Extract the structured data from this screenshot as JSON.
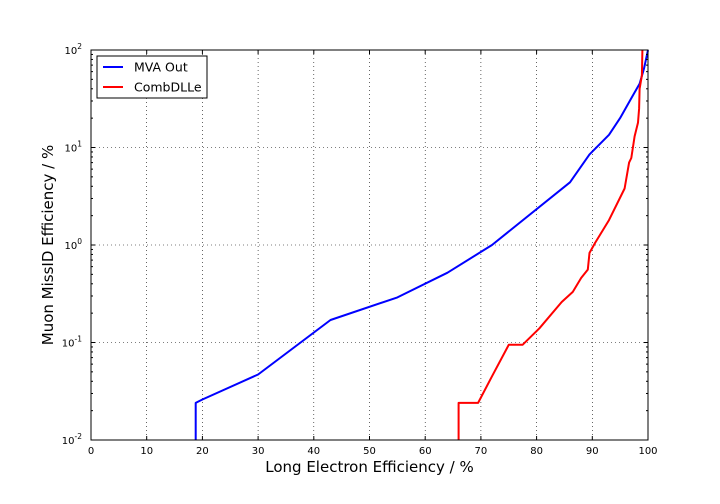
{
  "chart_data": {
    "type": "line",
    "xlabel": "Long Electron Efficiency / %",
    "ylabel": "Muon MissID Efficiency / %",
    "xlim": [
      0,
      100
    ],
    "ylim": [
      0.01,
      100
    ],
    "yscale": "log",
    "grid": true,
    "legend_position": "top-left",
    "x_ticks": [
      "0",
      "10",
      "20",
      "30",
      "40",
      "50",
      "60",
      "70",
      "80",
      "90",
      "100"
    ],
    "y_ticks": [
      {
        "base": "10",
        "exp": "-2"
      },
      {
        "base": "10",
        "exp": "-1"
      },
      {
        "base": "10",
        "exp": "0"
      },
      {
        "base": "10",
        "exp": "1"
      },
      {
        "base": "10",
        "exp": "2"
      }
    ],
    "series": [
      {
        "name": "MVA Out",
        "color": "#0000ff",
        "points": [
          [
            18.8,
            0.01
          ],
          [
            18.8,
            0.024
          ],
          [
            20,
            0.026
          ],
          [
            30,
            0.047
          ],
          [
            43,
            0.17
          ],
          [
            55,
            0.29
          ],
          [
            64,
            0.52
          ],
          [
            72,
            1.0
          ],
          [
            86,
            4.4
          ],
          [
            89.5,
            8.5
          ],
          [
            93,
            13.5
          ],
          [
            95,
            20
          ],
          [
            97,
            32
          ],
          [
            98.5,
            45
          ],
          [
            99.3,
            65
          ],
          [
            100,
            100
          ]
        ]
      },
      {
        "name": "CombDLLe",
        "color": "#ff0000",
        "points": [
          [
            66,
            0.01
          ],
          [
            66,
            0.024
          ],
          [
            69.5,
            0.024
          ],
          [
            72,
            0.045
          ],
          [
            75,
            0.095
          ],
          [
            77.5,
            0.095
          ],
          [
            80.5,
            0.14
          ],
          [
            84.5,
            0.26
          ],
          [
            86.5,
            0.33
          ],
          [
            88,
            0.46
          ],
          [
            89.2,
            0.56
          ],
          [
            89.5,
            0.83
          ],
          [
            90.5,
            1.05
          ],
          [
            93,
            1.8
          ],
          [
            95.8,
            3.8
          ],
          [
            96.6,
            7.0
          ],
          [
            97.0,
            7.8
          ],
          [
            97.6,
            13
          ],
          [
            98.2,
            18
          ],
          [
            98.4,
            25
          ],
          [
            98.5,
            40
          ],
          [
            98.9,
            55
          ],
          [
            99.0,
            100
          ]
        ]
      }
    ]
  }
}
